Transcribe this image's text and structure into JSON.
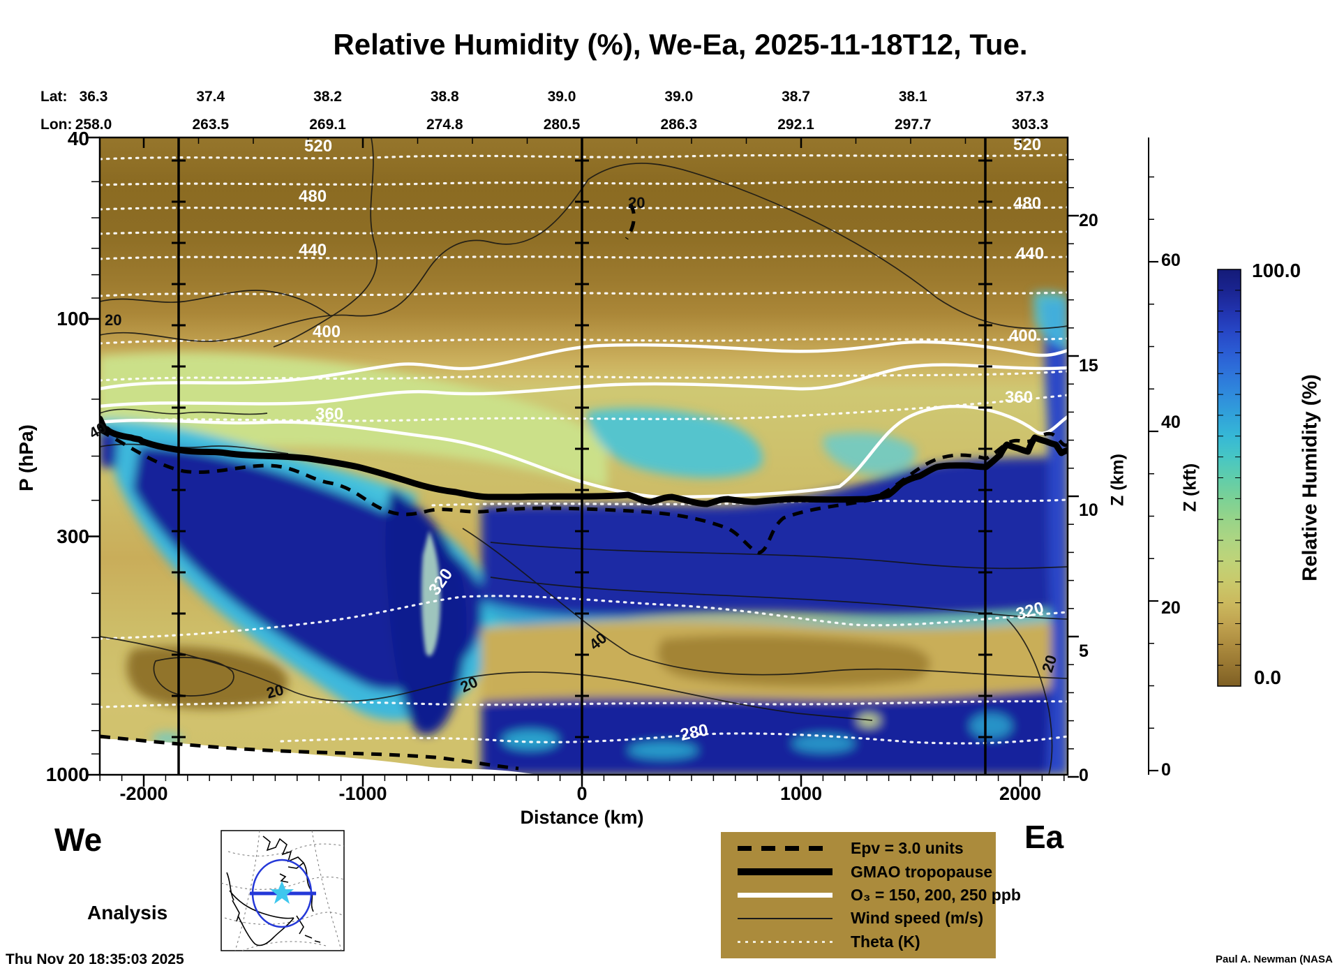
{
  "title": "Relative Humidity (%), We-Ea, 2025-11-18T12, Tue.",
  "header": {
    "lat_label": "Lat:",
    "lon_label": "Lon:",
    "lat_values": [
      "36.3",
      "37.4",
      "38.2",
      "38.8",
      "39.0",
      "39.0",
      "38.7",
      "38.1",
      "37.3"
    ],
    "lon_values": [
      "258.0",
      "263.5",
      "269.1",
      "274.8",
      "280.5",
      "286.3",
      "292.1",
      "297.7",
      "303.3"
    ]
  },
  "axes": {
    "pressure": {
      "label": "P (hPa)",
      "ticks": [
        "40",
        "100",
        "300",
        "1000"
      ]
    },
    "distance": {
      "label": "Distance (km)",
      "ticks": [
        "-2000",
        "-1000",
        "0",
        "1000",
        "2000"
      ]
    },
    "z_km": {
      "label": "Z (km)",
      "ticks": [
        "20",
        "15",
        "10",
        "5",
        "0"
      ]
    },
    "z_kft": {
      "label": "Z (kft)",
      "ticks": [
        "60",
        "40",
        "20",
        "0"
      ]
    }
  },
  "colorbar": {
    "title": "Relative Humidity (%)",
    "max": "100.0",
    "min": "0.0"
  },
  "endpoints": {
    "west": "We",
    "east": "Ea"
  },
  "annotations": {
    "analysis": "Analysis",
    "timestamp": "Thu Nov 20 18:35:03 2025",
    "credit": "Paul A. Newman (NASA"
  },
  "legend": {
    "items": [
      {
        "label": "Epv = 3.0 units"
      },
      {
        "label": "GMAO tropopause"
      },
      {
        "label": "O₃ = 150, 200, 250 ppb"
      },
      {
        "label": "Wind speed (m/s)"
      },
      {
        "label": "Theta (K)"
      }
    ]
  },
  "plot": {
    "theta": {
      "t520": "520",
      "t480": "480",
      "t440": "440",
      "t400": "400",
      "t360": "360",
      "t320": "320",
      "t280": "280"
    },
    "wind": {
      "w20": "20",
      "w40": "40"
    }
  },
  "colors": {
    "legend_bg": "#ab8b3c",
    "moist_max": "#141b78",
    "dry_min": "#7e5f24",
    "map_circle": "#2438d8",
    "map_star": "#3ec7ee"
  },
  "chart_data": {
    "type": "heatmap",
    "title": "Relative Humidity (%), We-Ea, 2025-11-18T12, Tue.",
    "xlabel": "Distance (km)",
    "x_range": [
      -2200,
      2216
    ],
    "x_ticks": [
      -2000,
      -1000,
      0,
      1000,
      2000
    ],
    "ylabel": "P (hPa)",
    "y_scale": "log",
    "y_range": [
      40,
      1000
    ],
    "y_ticks": [
      40,
      100,
      300,
      1000
    ],
    "z_km_ticks": [
      0,
      5,
      10,
      15,
      20
    ],
    "z_kft_ticks": [
      0,
      20,
      40,
      60
    ],
    "colorbar": {
      "label": "Relative Humidity (%)",
      "min": 0.0,
      "max": 100.0
    },
    "section_waypoints": [
      {
        "lat": 36.3,
        "lon": 258.0
      },
      {
        "lat": 37.4,
        "lon": 263.5
      },
      {
        "lat": 38.2,
        "lon": 269.1
      },
      {
        "lat": 38.8,
        "lon": 274.8
      },
      {
        "lat": 39.0,
        "lon": 280.5
      },
      {
        "lat": 39.0,
        "lon": 286.3
      },
      {
        "lat": 38.7,
        "lon": 292.1
      },
      {
        "lat": 38.1,
        "lon": 297.7
      },
      {
        "lat": 37.3,
        "lon": 303.3
      }
    ],
    "vertical_marker_lines_km": [
      -1840,
      0,
      1840
    ],
    "overlays": {
      "theta_contours_K": [
        280,
        300,
        320,
        340,
        360,
        380,
        400,
        420,
        440,
        460,
        480,
        500,
        520
      ],
      "theta_labeled_K": [
        280,
        320,
        360,
        400,
        440,
        480,
        520
      ],
      "wind_speed_contours_ms": [
        20,
        40
      ],
      "ozone_contours_ppb": [
        150,
        200,
        250
      ],
      "epv_contour_units": 3.0,
      "tropopause": "GMAO tropopause near 200-250 hPa, descending west-to-center, rising toward east edge"
    },
    "field_summary": "Dry stratosphere (RH 0-20%) above the tropopause; very moist layer (RH 80-100%) 250-500 hPa from -2000 to +2200 km with deep moist tongue near -600 km reaching 800 hPa; dry mid-level slot (RH 10-30%) 500-850 hPa east of +200 km; moist boundary layer (RH 80-100%) 850-1000 hPa on the eastern half; terrain blanking below ~850 hPa west of -100 km"
  }
}
